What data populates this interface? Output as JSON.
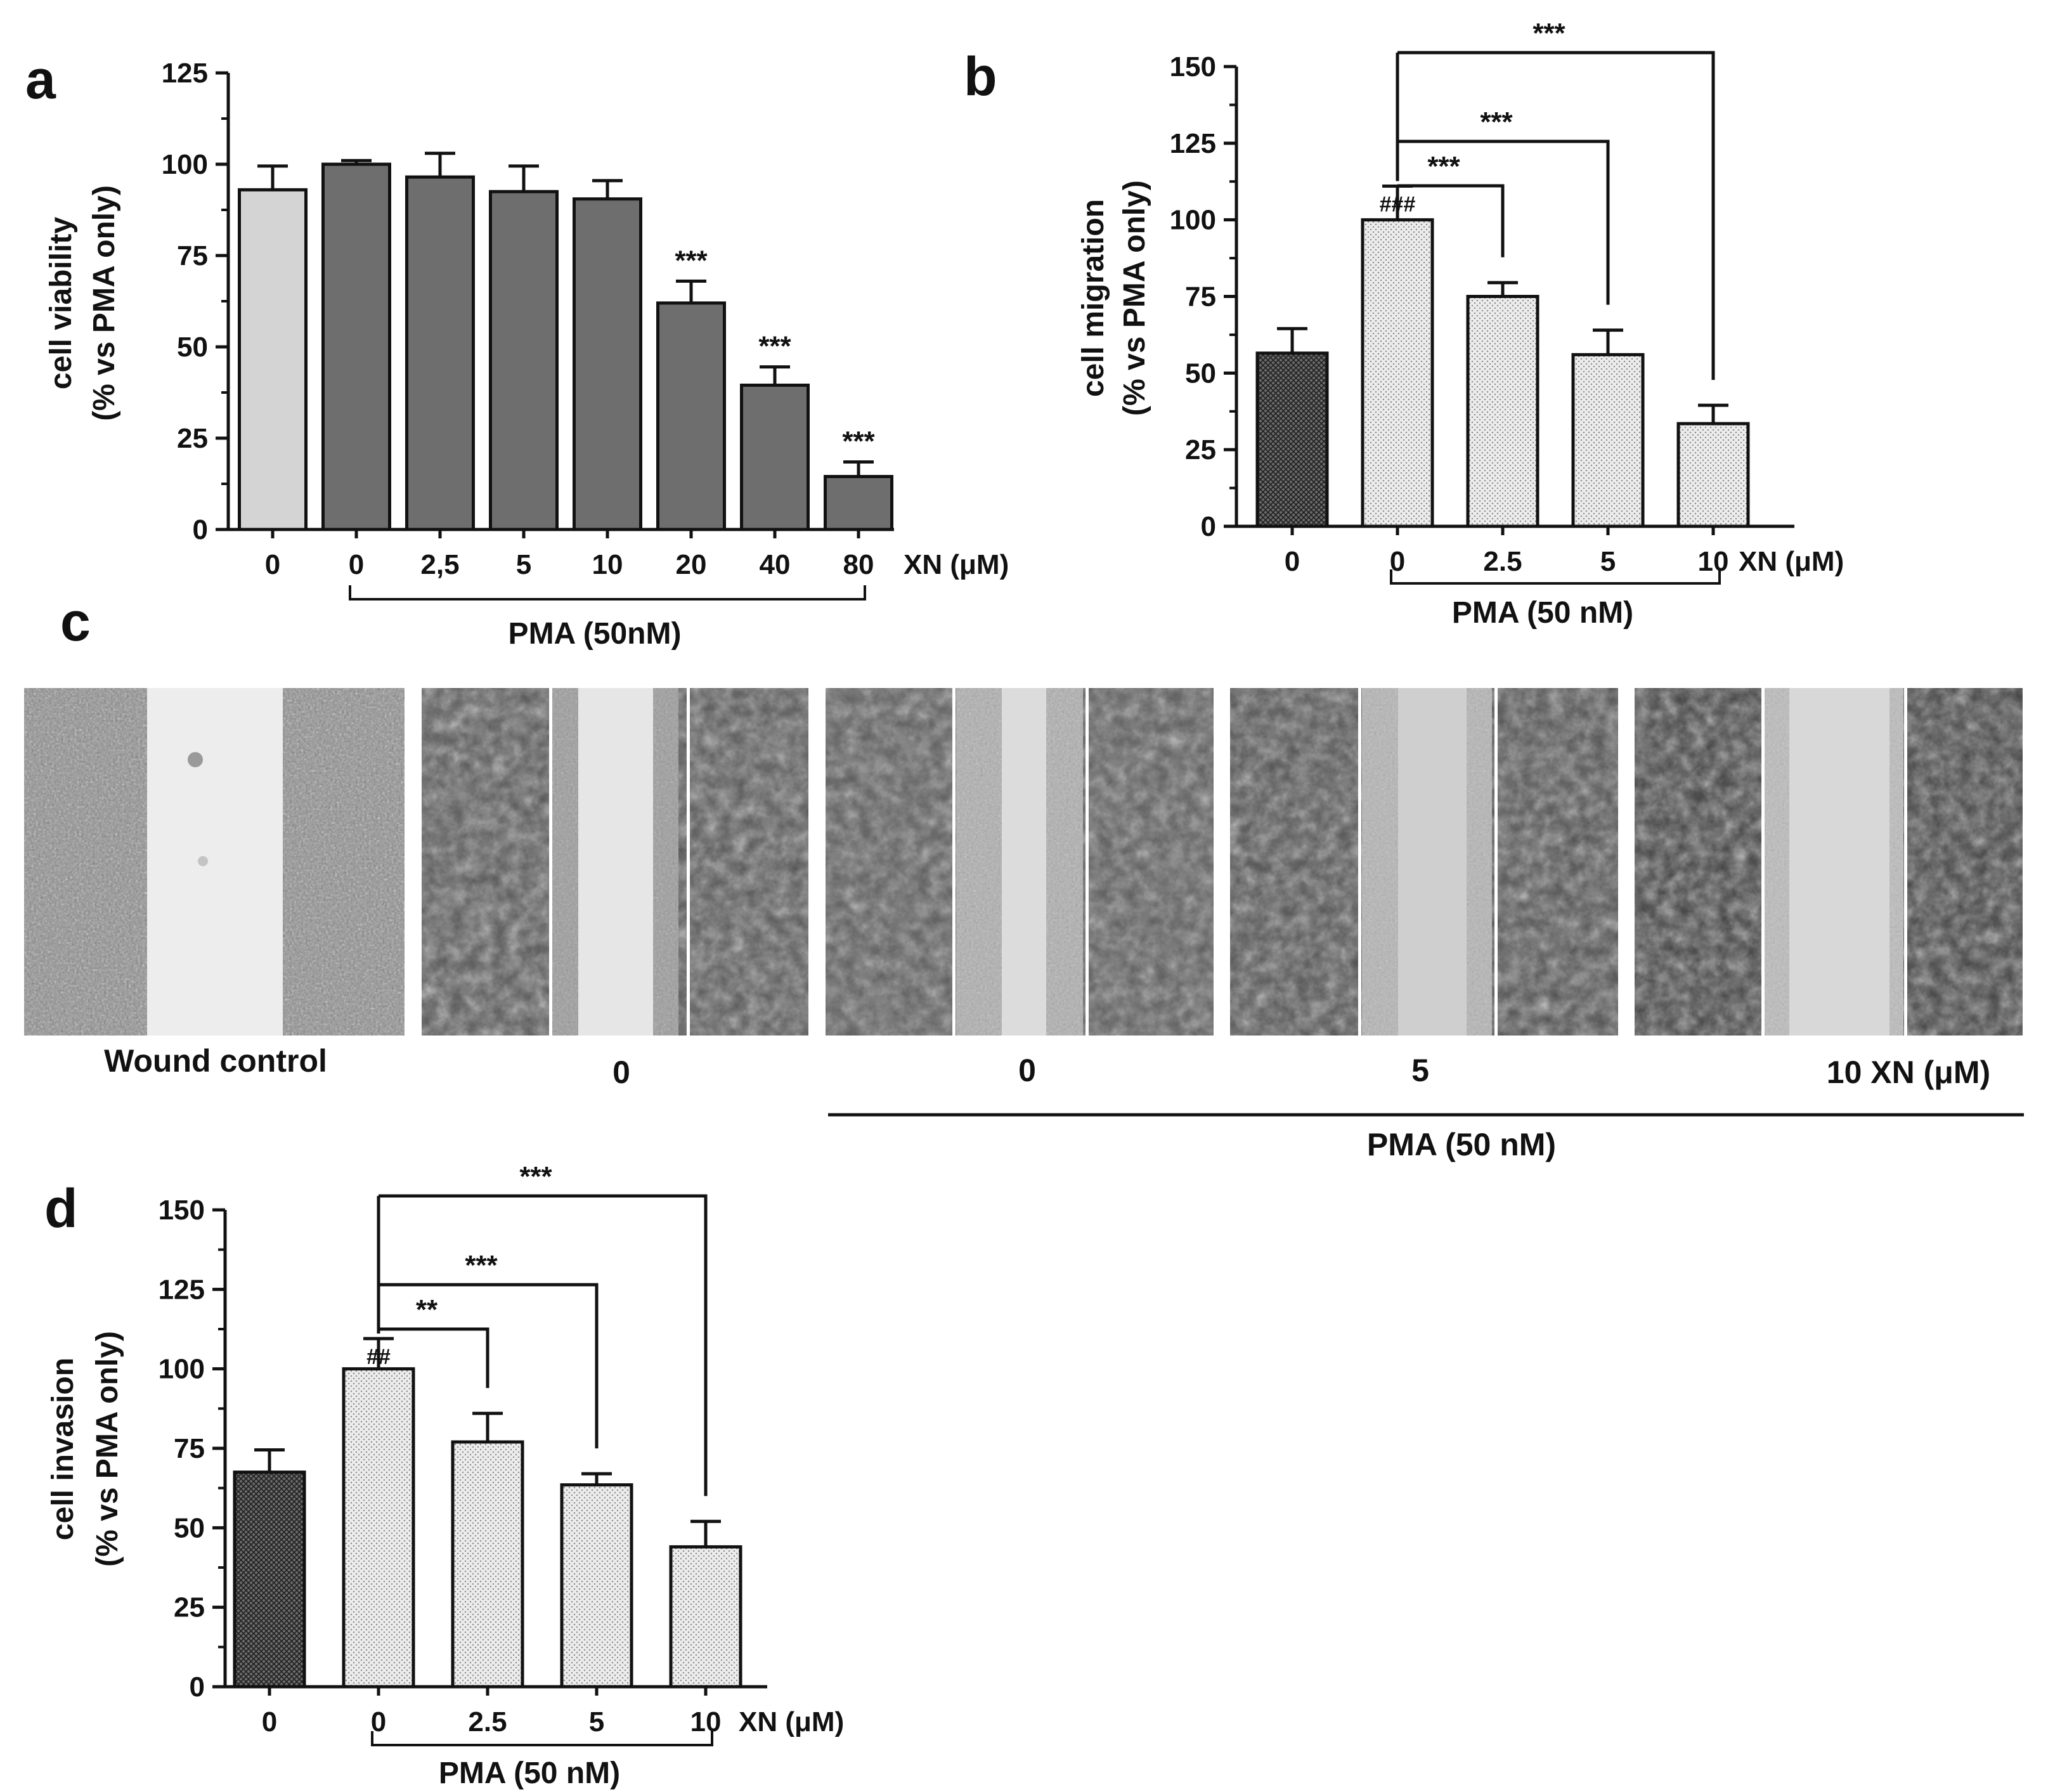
{
  "colors": {
    "dark_bar": "#6e6e6e",
    "light_bar": "#d4d4d4",
    "dotted_fill": "#e9e9e9",
    "ink": "#111111"
  },
  "chart_data": [
    {
      "panel": "a",
      "type": "bar",
      "ylabel": "cell viability",
      "ylabel2": "(% vs PMA only)",
      "ylim": [
        0,
        125
      ],
      "yticks": [
        0,
        25,
        50,
        75,
        100,
        125
      ],
      "categories": [
        "0",
        "0",
        "2,5",
        "5",
        "10",
        "20",
        "40",
        "80"
      ],
      "values": [
        93,
        100,
        96.5,
        92.5,
        90.5,
        62,
        39.5,
        14.5
      ],
      "errors": [
        6.5,
        1,
        6.5,
        7,
        5,
        6,
        5,
        4
      ],
      "styles": [
        "light",
        "dark",
        "dark",
        "dark",
        "dark",
        "dark",
        "dark",
        "dark"
      ],
      "significance": [
        "",
        "",
        "",
        "",
        "",
        "***",
        "***",
        "***"
      ],
      "xunit": "XN (μM)",
      "group_label": "PMA (50nM)",
      "group_span": [
        1,
        7
      ]
    },
    {
      "panel": "b",
      "type": "bar",
      "ylabel": "cell migration",
      "ylabel2": "(% vs PMA only)",
      "ylim": [
        0,
        150
      ],
      "yticks": [
        0,
        25,
        50,
        75,
        100,
        125,
        150
      ],
      "categories": [
        "0",
        "0",
        "2.5",
        "5",
        "10"
      ],
      "values": [
        56.5,
        100,
        75,
        56,
        33.5
      ],
      "errors": [
        8,
        11,
        4.5,
        8,
        6
      ],
      "styles": [
        "cross",
        "dot",
        "dot",
        "dot",
        "dot"
      ],
      "hash": [
        "",
        "###",
        "",
        "",
        ""
      ],
      "comparisons": [
        {
          "from": 1,
          "to": 2,
          "label": "***"
        },
        {
          "from": 1,
          "to": 3,
          "label": "***"
        },
        {
          "from": 1,
          "to": 4,
          "label": "***"
        }
      ],
      "xunit": "XN (μM)",
      "group_label": "PMA (50 nM)",
      "group_span": [
        1,
        4
      ]
    },
    {
      "panel": "d",
      "type": "bar",
      "ylabel": "cell invasion",
      "ylabel2": "(% vs PMA only)",
      "ylim": [
        0,
        150
      ],
      "yticks": [
        0,
        25,
        50,
        75,
        100,
        125,
        150
      ],
      "categories": [
        "0",
        "0",
        "2.5",
        "5",
        "10"
      ],
      "values": [
        67.5,
        100,
        77,
        63.5,
        44
      ],
      "errors": [
        7,
        9.5,
        9,
        3.5,
        8
      ],
      "styles": [
        "cross",
        "dot",
        "dot",
        "dot",
        "dot"
      ],
      "hash": [
        "",
        "##",
        "",
        "",
        ""
      ],
      "comparisons": [
        {
          "from": 1,
          "to": 2,
          "label": "**"
        },
        {
          "from": 1,
          "to": 3,
          "label": "***"
        },
        {
          "from": 1,
          "to": 4,
          "label": "***"
        }
      ],
      "xunit": "XN (μM)",
      "group_label": "PMA (50 nM)",
      "group_span": [
        1,
        4
      ]
    }
  ],
  "micrographs": {
    "panel": "c",
    "labels": [
      "Wound control",
      "0",
      "0",
      "5",
      "10 XN (μM)"
    ],
    "group_label": "PMA (50 nM)",
    "group_span": [
      2,
      4
    ]
  }
}
